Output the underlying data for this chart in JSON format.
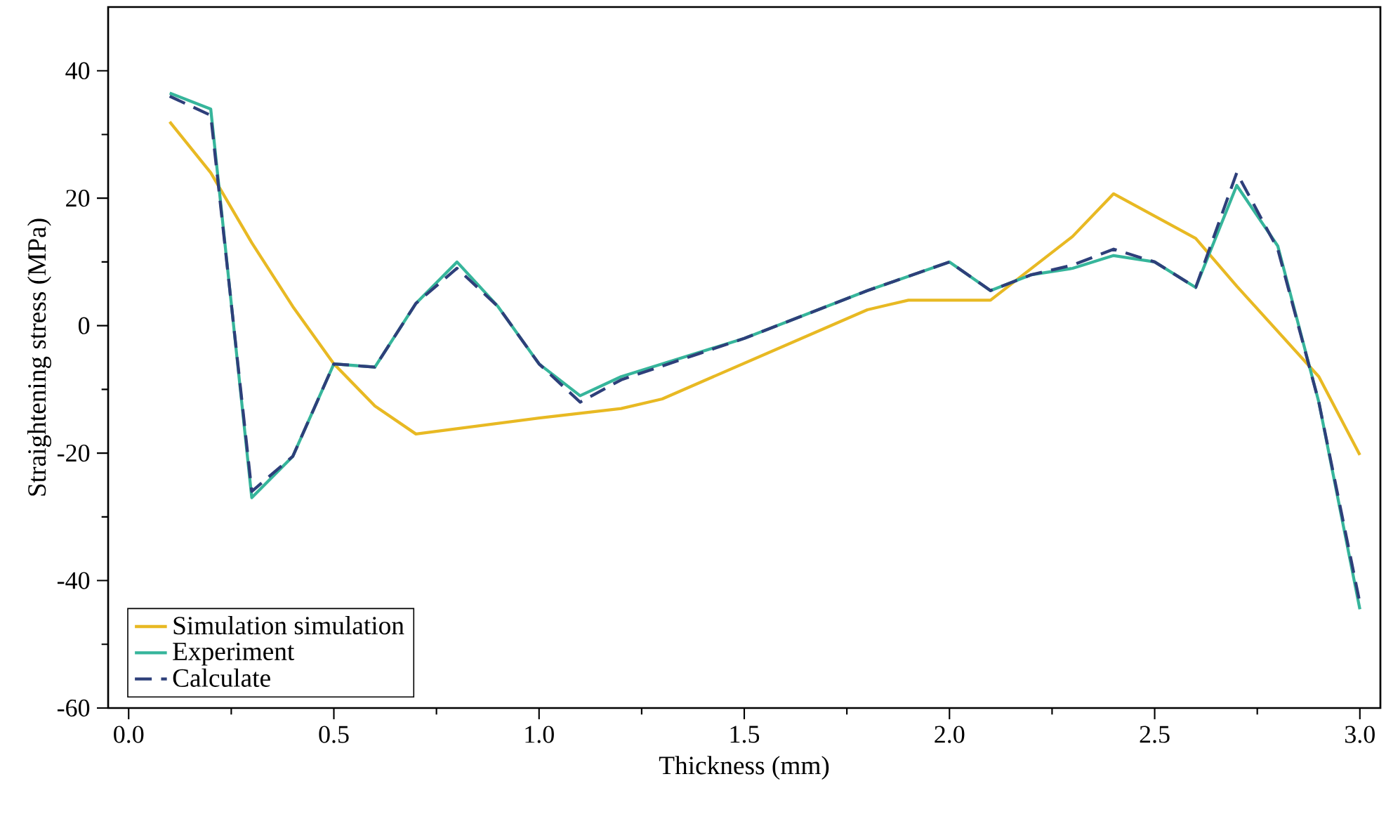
{
  "chart_data": {
    "type": "line",
    "xlabel": "Thickness (mm)",
    "ylabel": "Straightening stress (MPa)",
    "xlim": [
      -0.05,
      3.05
    ],
    "ylim": [
      -60,
      50
    ],
    "xticks": [
      {
        "value": 0,
        "label": "0.0"
      },
      0.5,
      {
        "value": 1,
        "label": "1.0"
      },
      1.5,
      {
        "value": 2,
        "label": "2.0"
      },
      2.5,
      {
        "value": 3,
        "label": "3.0"
      }
    ],
    "yticks": [
      -60,
      -40,
      -20,
      0,
      20,
      40
    ],
    "grid": false,
    "legend": "bottom left",
    "marker": "none",
    "series": [
      {
        "name": "Simulation simulation",
        "color": "#e8b923",
        "x": [
          0.1,
          0.2,
          0.3,
          0.4,
          0.5,
          0.6,
          0.7,
          1.0,
          1.2,
          1.3,
          1.8,
          1.9,
          2.1,
          2.3,
          2.4,
          2.6,
          2.7,
          2.9,
          3.0
        ],
        "values": [
          32,
          24,
          13,
          3,
          -6,
          -12.6,
          -17,
          -14.5,
          -13,
          -11.5,
          2.5,
          4,
          4,
          14,
          20.7,
          13.7,
          6.2,
          -8,
          -20.3
        ]
      },
      {
        "name": "Experiment",
        "color": "#36b59b",
        "x": [
          0.1,
          0.2,
          0.3,
          0.4,
          0.5,
          0.6,
          0.7,
          0.8,
          0.9,
          1.0,
          1.1,
          1.2,
          1.5,
          1.8,
          2.0,
          2.1,
          2.2,
          2.3,
          2.4,
          2.5,
          2.6,
          2.7,
          2.8,
          2.9,
          3.0
        ],
        "values": [
          36.5,
          34,
          -27,
          -20.5,
          -6,
          -6.5,
          3.5,
          10,
          3,
          -6,
          -11,
          -8,
          -2,
          5.5,
          10,
          5.5,
          8,
          9,
          11,
          10,
          6,
          22,
          12.5,
          -12,
          -44.5
        ]
      },
      {
        "name": "Calculate",
        "color": "#2e3f7a",
        "line_style": "dashed",
        "x": [
          0.1,
          0.2,
          0.3,
          0.4,
          0.5,
          0.6,
          0.7,
          0.8,
          0.9,
          1.0,
          1.1,
          1.2,
          1.5,
          1.8,
          2.0,
          2.1,
          2.2,
          2.3,
          2.4,
          2.5,
          2.6,
          2.7,
          2.8,
          2.9,
          3.0
        ],
        "values": [
          36,
          33,
          -26,
          -20.5,
          -6,
          -6.5,
          3.5,
          9,
          3,
          -6,
          -12,
          -8.5,
          -2,
          5.5,
          10,
          5.5,
          8,
          9.5,
          12,
          10,
          6,
          24,
          12,
          -12,
          -43.5
        ]
      }
    ]
  }
}
